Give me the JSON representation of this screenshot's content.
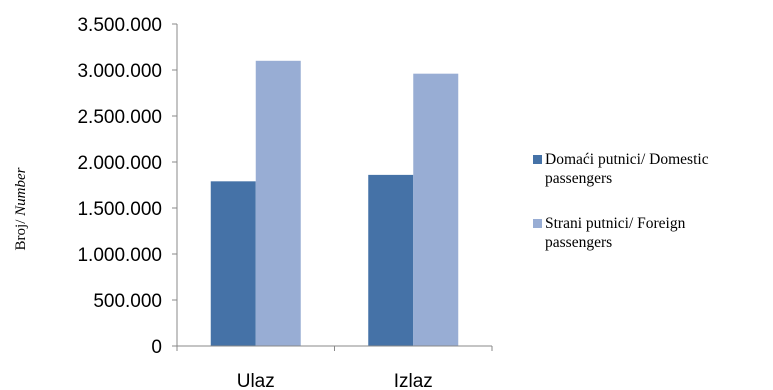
{
  "chart_data": {
    "type": "bar",
    "categories": [
      "Ulaz",
      "Izlaz"
    ],
    "series": [
      {
        "name": "Domaći putnici/ Domestic passengers",
        "legend_lines": [
          "Domaći putnici/ Domestic",
          "passengers"
        ],
        "color": "#4572A7",
        "values": [
          1790000,
          1860000
        ]
      },
      {
        "name": "Strani putnici/ Foreign passengers",
        "legend_lines": [
          "Strani putnici/ Foreign",
          "passengers"
        ],
        "color": "#98ADD4",
        "values": [
          3100000,
          2960000
        ]
      }
    ],
    "ylabel": {
      "main": "Broj/ ",
      "italic": "Number"
    },
    "ylim": [
      0,
      3500000
    ],
    "yticks": [
      0,
      500000,
      1000000,
      1500000,
      2000000,
      2500000,
      3000000,
      3500000
    ],
    "ytick_labels": [
      "0",
      "500.000",
      "1.000.000",
      "1.500.000",
      "2.000.000",
      "2.500.000",
      "3.000.000",
      "3.500.000"
    ],
    "legend_position": "right",
    "grid": false
  }
}
